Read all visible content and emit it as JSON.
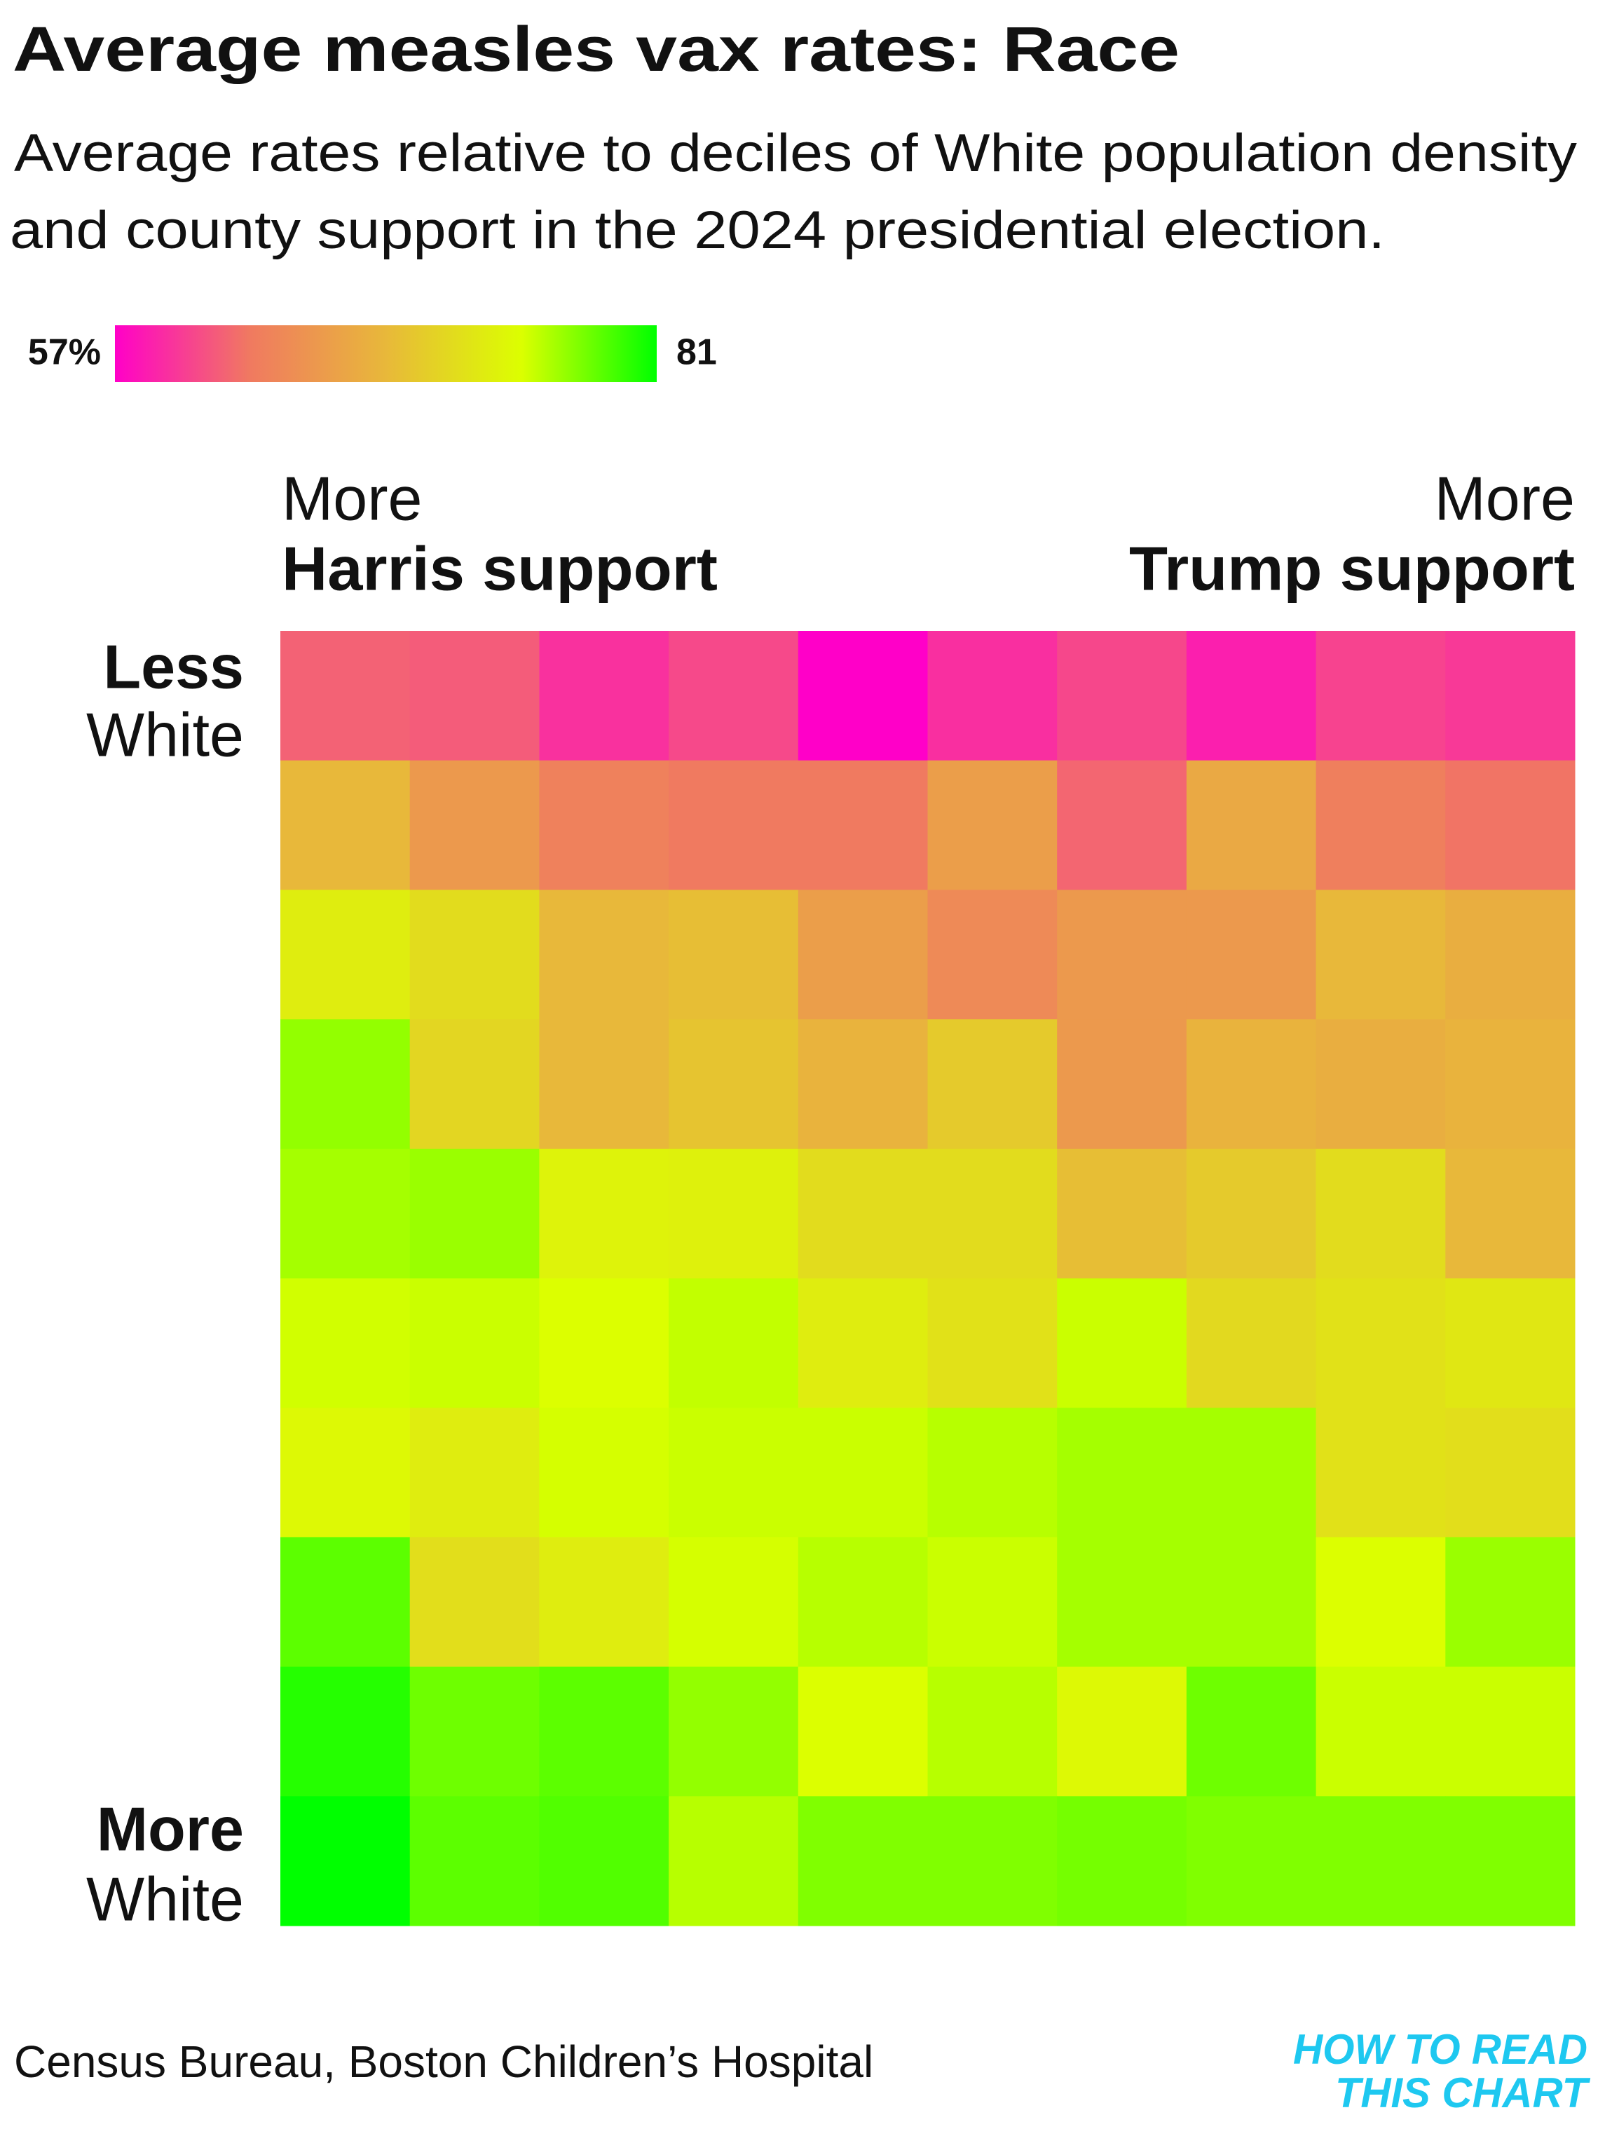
{
  "chart_data": {
    "type": "heatmap",
    "title": "Average measles vax rates: Race",
    "subtitle": [
      "Average rates relative to deciles of White population density",
      "and county support in the 2024 presidential election."
    ],
    "zlim": [
      57,
      81
    ],
    "zticks": [
      {
        "value": 57,
        "label": "57%"
      },
      81
    ],
    "colorscale": [
      "#ff00c8",
      "#f07a60",
      "#e8b83a",
      "#dcff00",
      "#00ff00"
    ],
    "x_labels": {
      "left": [
        "More",
        "Harris support"
      ],
      "right": [
        "More",
        "Trump support"
      ]
    },
    "y_labels": {
      "top": [
        "Less",
        "White"
      ],
      "bottom": [
        "More",
        "White"
      ]
    },
    "z": [
      [
        61.8,
        61.5,
        59.4,
        60.6,
        57,
        59.3,
        60.5,
        58.5,
        60.3,
        59.8
      ],
      [
        69,
        66,
        63.7,
        63,
        63,
        66.5,
        62,
        67.5,
        63.5,
        62.7
      ],
      [
        73.5,
        72,
        69,
        69.5,
        66.5,
        64.5,
        66,
        66,
        69,
        68
      ],
      [
        77,
        71.5,
        69,
        70,
        68.5,
        70.5,
        66,
        68.5,
        68,
        68.5
      ],
      [
        76.5,
        76.8,
        74,
        73.8,
        72,
        72,
        69.5,
        70.5,
        72,
        69
      ],
      [
        75.3,
        75.5,
        75,
        75.7,
        73.5,
        72.5,
        75.5,
        71.8,
        72.5,
        73
      ],
      [
        74.5,
        73.5,
        75.2,
        75.5,
        75.5,
        76,
        76.5,
        76.5,
        72.5,
        72.2
      ],
      [
        78.5,
        72.2,
        73.5,
        75.2,
        76,
        75.5,
        76.5,
        76.5,
        75,
        76.8
      ],
      [
        80,
        78,
        78.5,
        77,
        75,
        76,
        74.5,
        78,
        75.5,
        75.5
      ],
      [
        81,
        78.5,
        78.8,
        76,
        77.5,
        77.5,
        77.8,
        77.5,
        77.5,
        77.5
      ]
    ],
    "source": "Census Bureau, Boston Children’s Hospital",
    "logo": [
      "HOW TO READ",
      "THIS CHART"
    ]
  }
}
